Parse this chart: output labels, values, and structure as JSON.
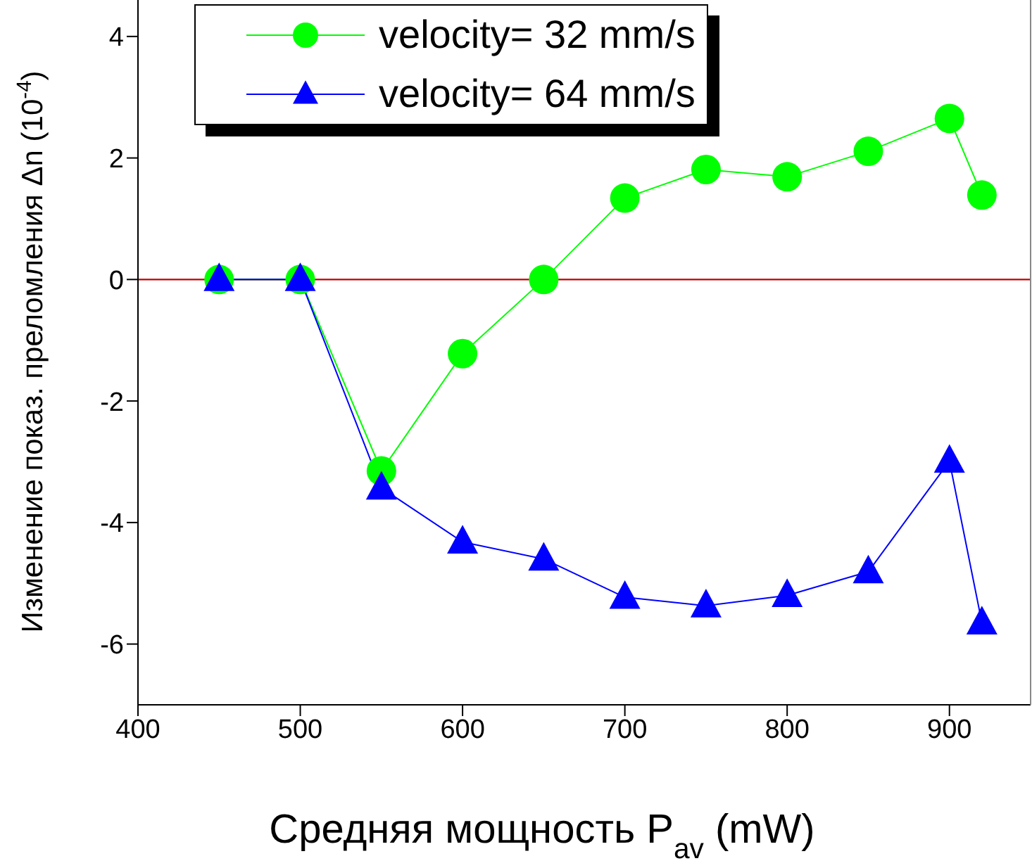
{
  "chart_data": {
    "type": "line",
    "xlabel": "Средняя мощность P$_{av}$ (mW)",
    "ylabel": "Изменение показ. преломления Δn (10$^{-4}$)",
    "x": [
      450,
      500,
      550,
      600,
      650,
      700,
      750,
      800,
      850,
      900,
      920
    ],
    "series": [
      {
        "name": "velocity= 32 mm/s",
        "color": "#00ff00",
        "marker": "circle",
        "values": [
          0,
          0,
          -3.15,
          -1.22,
          0,
          1.34,
          1.81,
          1.69,
          2.11,
          2.65,
          1.39
        ]
      },
      {
        "name": "velocity= 64 mm/s",
        "color": "#0000ff",
        "marker": "triangle",
        "values": [
          0,
          0,
          -3.43,
          -4.32,
          -4.6,
          -5.23,
          -5.37,
          -5.2,
          -4.81,
          -2.99,
          -5.65
        ]
      }
    ],
    "xlim": [
      400,
      950
    ],
    "xticks": [
      400,
      500,
      600,
      700,
      800,
      900
    ],
    "ylim": [
      -7,
      4.6
    ],
    "yticks": [
      -6,
      -4,
      -2,
      0,
      2,
      4
    ],
    "ref_lines": [
      {
        "axis": "y",
        "value": 0,
        "color": "#c00000"
      }
    ],
    "grid": false,
    "legend": "top",
    "line_style": "solid"
  }
}
